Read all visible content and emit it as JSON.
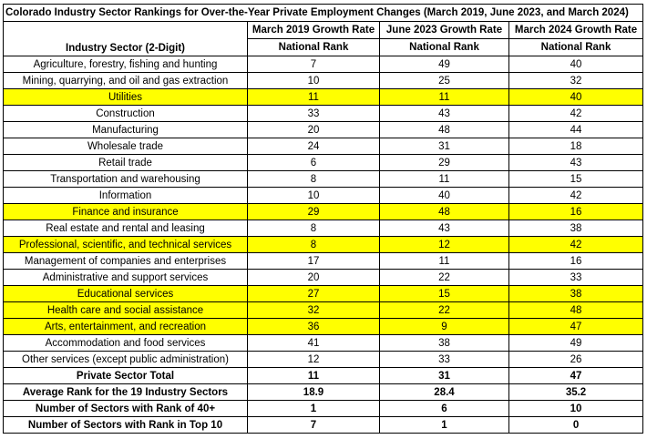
{
  "title": "Colorado Industry Sector Rankings for Over-the-Year Private Employment Changes (March 2019, June 2023, and March 2024)",
  "headers": {
    "sector": "Industry Sector (2-Digit)",
    "col1_line1": "March 2019 Growth Rate",
    "col1_line2": "National Rank",
    "col2_line1": "June 2023 Growth Rate",
    "col2_line2": "National Rank",
    "col3_line1": "March 2024 Growth Rate",
    "col3_line2": "National Rank"
  },
  "highlight_color": "#ffff00",
  "rows": [
    {
      "sector": "Agriculture, forestry, fishing and hunting",
      "m2019": "7",
      "j2023": "49",
      "m2024": "40",
      "highlight": false
    },
    {
      "sector": "Mining, quarrying, and oil and gas extraction",
      "m2019": "10",
      "j2023": "25",
      "m2024": "32",
      "highlight": false
    },
    {
      "sector": "Utilities",
      "m2019": "11",
      "j2023": "11",
      "m2024": "40",
      "highlight": true
    },
    {
      "sector": "Construction",
      "m2019": "33",
      "j2023": "43",
      "m2024": "42",
      "highlight": false
    },
    {
      "sector": "Manufacturing",
      "m2019": "20",
      "j2023": "48",
      "m2024": "44",
      "highlight": false
    },
    {
      "sector": "Wholesale trade",
      "m2019": "24",
      "j2023": "31",
      "m2024": "18",
      "highlight": false
    },
    {
      "sector": "Retail trade",
      "m2019": "6",
      "j2023": "29",
      "m2024": "43",
      "highlight": false
    },
    {
      "sector": "Transportation and warehousing",
      "m2019": "8",
      "j2023": "11",
      "m2024": "15",
      "highlight": false
    },
    {
      "sector": "Information",
      "m2019": "10",
      "j2023": "40",
      "m2024": "42",
      "highlight": false
    },
    {
      "sector": "Finance and insurance",
      "m2019": "29",
      "j2023": "48",
      "m2024": "16",
      "highlight": true
    },
    {
      "sector": "Real estate and rental and leasing",
      "m2019": "8",
      "j2023": "43",
      "m2024": "38",
      "highlight": false
    },
    {
      "sector": "Professional, scientific, and technical services",
      "m2019": "8",
      "j2023": "12",
      "m2024": "42",
      "highlight": true
    },
    {
      "sector": "Management of companies and enterprises",
      "m2019": "17",
      "j2023": "11",
      "m2024": "16",
      "highlight": false
    },
    {
      "sector": "Administrative and support services",
      "m2019": "20",
      "j2023": "22",
      "m2024": "33",
      "highlight": false
    },
    {
      "sector": "Educational services",
      "m2019": "27",
      "j2023": "15",
      "m2024": "38",
      "highlight": true
    },
    {
      "sector": "Health care and social assistance",
      "m2019": "32",
      "j2023": "22",
      "m2024": "48",
      "highlight": true
    },
    {
      "sector": "Arts, entertainment, and recreation",
      "m2019": "36",
      "j2023": "9",
      "m2024": "47",
      "highlight": true
    },
    {
      "sector": "Accommodation and food services",
      "m2019": "41",
      "j2023": "38",
      "m2024": "49",
      "highlight": false
    },
    {
      "sector": "Other services (except public administration)",
      "m2019": "12",
      "j2023": "33",
      "m2024": "26",
      "highlight": false
    }
  ],
  "summary": [
    {
      "sector": "Private Sector Total",
      "m2019": "11",
      "j2023": "31",
      "m2024": "47"
    },
    {
      "sector": "Average Rank  for the 19 Industry Sectors",
      "m2019": "18.9",
      "j2023": "28.4",
      "m2024": "35.2"
    },
    {
      "sector": "Number of Sectors with Rank of 40+",
      "m2019": "1",
      "j2023": "6",
      "m2024": "10"
    },
    {
      "sector": "Number of Sectors with Rank in Top 10",
      "m2019": "7",
      "j2023": "1",
      "m2024": "0"
    }
  ]
}
